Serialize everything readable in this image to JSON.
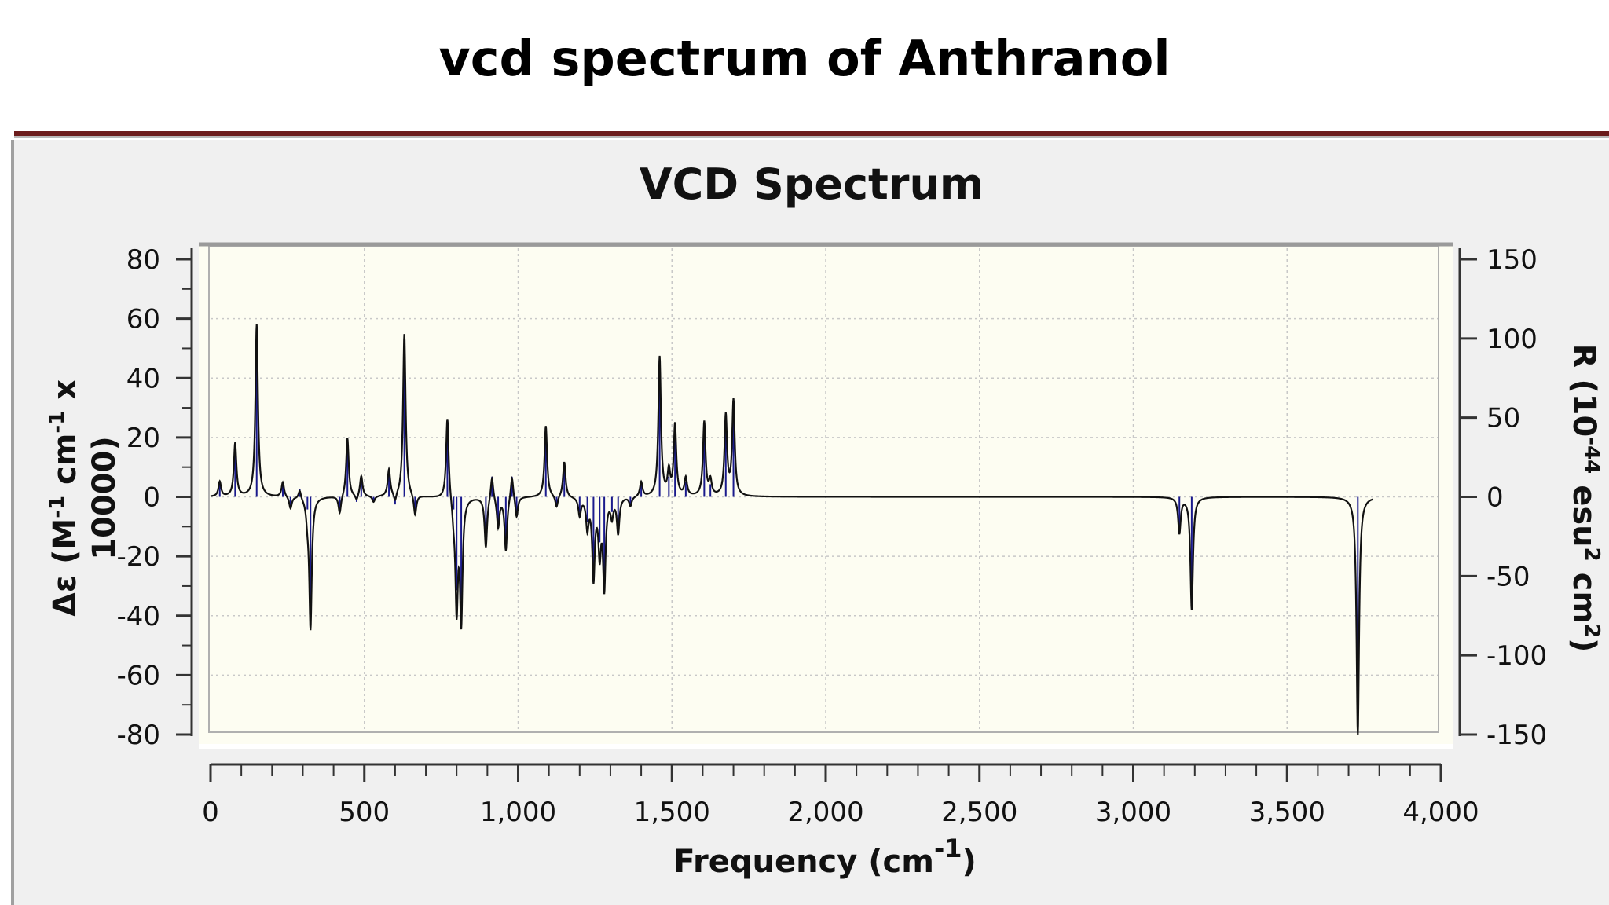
{
  "page": {
    "title": "vcd spectrum of Anthranol"
  },
  "chart_data": {
    "type": "line",
    "title": "VCD Spectrum",
    "xlabel": "Frequency (cm",
    "xlabel_sup": "-1",
    "xlabel_end": ")",
    "ylabel_left_line1_parts": [
      "Δε (M",
      "-1",
      " cm",
      "-1",
      " x"
    ],
    "ylabel_left_line2": "10000)",
    "ylabel_right_parts": [
      "R (10",
      "-44",
      " esu",
      "2",
      " cm",
      "2",
      ")"
    ],
    "xlim": [
      0,
      4000
    ],
    "ylim_left": [
      -80,
      80
    ],
    "ylim_right": [
      -150,
      150
    ],
    "x_ticks": [
      "0",
      "500",
      "1,000",
      "1,500",
      "2,000",
      "2,500",
      "3,000",
      "3,500",
      "4,000"
    ],
    "x_tick_values": [
      0,
      500,
      1000,
      1500,
      2000,
      2500,
      3000,
      3500,
      4000
    ],
    "y_left_ticks": [
      "80",
      "60",
      "40",
      "20",
      "0",
      "-20",
      "-40",
      "-60",
      "-80"
    ],
    "y_left_tick_values": [
      80,
      60,
      40,
      20,
      0,
      -20,
      -40,
      -60,
      -80
    ],
    "y_right_ticks": [
      "150",
      "100",
      "50",
      "0",
      "-50",
      "-100",
      "-150"
    ],
    "y_right_tick_values": [
      150,
      100,
      50,
      0,
      -50,
      -100,
      -150
    ],
    "grid": true,
    "colors": {
      "line": "#111111",
      "sticks": "#1a1a8c",
      "plot_bg": "#fdfdf2",
      "grid": "#c8c8c8",
      "frame": "#9a9a9a"
    },
    "x_range_line": [
      0,
      3780
    ],
    "peaks": [
      {
        "x": 30,
        "y": 5
      },
      {
        "x": 80,
        "y": 18
      },
      {
        "x": 150,
        "y": 58
      },
      {
        "x": 235,
        "y": 5
      },
      {
        "x": 260,
        "y": -4
      },
      {
        "x": 290,
        "y": 3
      },
      {
        "x": 315,
        "y": -5
      },
      {
        "x": 325,
        "y": -44
      },
      {
        "x": 420,
        "y": -6
      },
      {
        "x": 445,
        "y": 20
      },
      {
        "x": 475,
        "y": -2
      },
      {
        "x": 490,
        "y": 7
      },
      {
        "x": 530,
        "y": -2
      },
      {
        "x": 580,
        "y": 9
      },
      {
        "x": 600,
        "y": -3
      },
      {
        "x": 630,
        "y": 55
      },
      {
        "x": 665,
        "y": -7
      },
      {
        "x": 770,
        "y": 28
      },
      {
        "x": 790,
        "y": -5
      },
      {
        "x": 800,
        "y": -37
      },
      {
        "x": 815,
        "y": -41
      },
      {
        "x": 895,
        "y": -17
      },
      {
        "x": 915,
        "y": 8
      },
      {
        "x": 935,
        "y": -10
      },
      {
        "x": 960,
        "y": -18
      },
      {
        "x": 980,
        "y": 8
      },
      {
        "x": 995,
        "y": -7
      },
      {
        "x": 1090,
        "y": 24
      },
      {
        "x": 1125,
        "y": -4
      },
      {
        "x": 1150,
        "y": 12
      },
      {
        "x": 1200,
        "y": -6
      },
      {
        "x": 1225,
        "y": -10
      },
      {
        "x": 1245,
        "y": -27
      },
      {
        "x": 1265,
        "y": -18
      },
      {
        "x": 1280,
        "y": -30
      },
      {
        "x": 1305,
        "y": -6
      },
      {
        "x": 1325,
        "y": -12
      },
      {
        "x": 1365,
        "y": -3
      },
      {
        "x": 1400,
        "y": 5
      },
      {
        "x": 1460,
        "y": 47
      },
      {
        "x": 1490,
        "y": 8
      },
      {
        "x": 1510,
        "y": 24
      },
      {
        "x": 1545,
        "y": 6
      },
      {
        "x": 1605,
        "y": 25
      },
      {
        "x": 1625,
        "y": 5
      },
      {
        "x": 1675,
        "y": 27
      },
      {
        "x": 1700,
        "y": 32
      },
      {
        "x": 3150,
        "y": -12
      },
      {
        "x": 3190,
        "y": -38
      },
      {
        "x": 3730,
        "y": -80
      }
    ]
  }
}
